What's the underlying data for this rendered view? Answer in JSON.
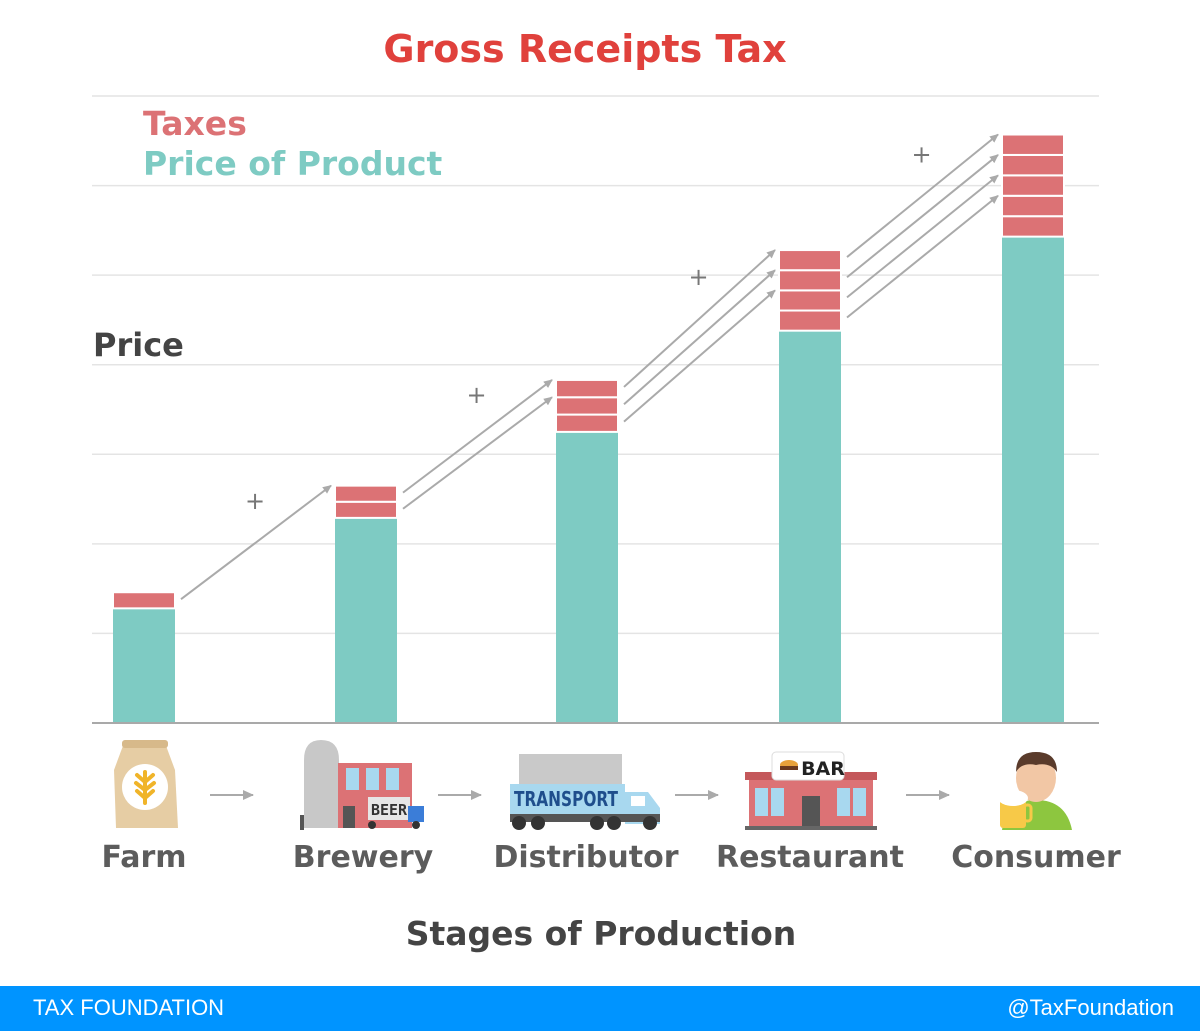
{
  "colors": {
    "title": "#e0413c",
    "taxes": "#dc7275",
    "price": "#7ecbc3",
    "text": "#444444",
    "grid": "#e4e4e4",
    "axis": "#a9a9a9",
    "arrow": "#aaaaaa",
    "footer": "#0094ff"
  },
  "chart_data": {
    "type": "bar",
    "stacked": true,
    "title": "Gross Receipts Tax",
    "ylabel": "Price",
    "xlabel": "Stages of Production",
    "categories": [
      "Farm",
      "Brewery",
      "Distributor",
      "Restaurant",
      "Consumer"
    ],
    "ylim": [
      0,
      7
    ],
    "grid": true,
    "legend_position": "top-left",
    "series": [
      {
        "name": "Price of Product",
        "values": [
          1.28,
          2.29,
          3.25,
          4.38,
          5.43
        ]
      },
      {
        "name": "Taxes",
        "values": [
          0.18,
          0.36,
          0.58,
          0.9,
          1.14
        ]
      }
    ],
    "tax_segments": [
      1,
      2,
      3,
      4,
      5
    ],
    "plus_signs": [
      "+",
      "+",
      "+",
      "+"
    ]
  },
  "icons": [
    "wheat-sack-icon",
    "brewery-icon",
    "transport-truck-icon",
    "bar-restaurant-icon",
    "consumer-icon"
  ],
  "icon_text": {
    "brewery": "BEER",
    "distributor": "TRANSPORT",
    "restaurant": "BAR"
  },
  "footer": {
    "org": "TAX FOUNDATION",
    "handle": "@TaxFoundation"
  }
}
